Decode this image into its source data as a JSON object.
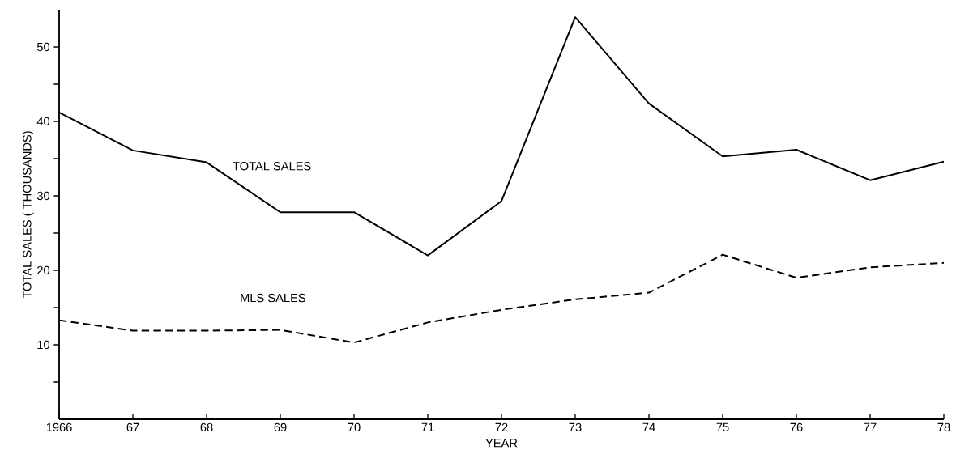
{
  "chart_data": {
    "type": "line",
    "xlabel": "YEAR",
    "ylabel": "TOTAL SALES ( THOUSANDS)",
    "x": [
      1966,
      1967,
      1968,
      1969,
      1970,
      1971,
      1972,
      1973,
      1974,
      1975,
      1976,
      1977,
      1978
    ],
    "series": [
      {
        "name": "TOTAL SALES",
        "color": "#000000",
        "line_style": "solid",
        "values": [
          41.2,
          36.1,
          34.5,
          27.8,
          27.8,
          22.0,
          29.3,
          54.0,
          42.4,
          35.3,
          36.2,
          32.1,
          34.6
        ]
      },
      {
        "name": "MLS SALES",
        "color": "#000000",
        "line_style": "dashed",
        "values": [
          13.3,
          11.9,
          11.9,
          12.0,
          10.3,
          13.0,
          14.7,
          16.1,
          17.0,
          22.1,
          19.0,
          20.4,
          21.0
        ]
      }
    ],
    "xlim": [
      1966,
      1978
    ],
    "ylim": [
      0,
      55
    ],
    "xticks": [
      {
        "value": 1966,
        "label": "1966"
      },
      {
        "value": 1967,
        "label": "67"
      },
      {
        "value": 1968,
        "label": "68"
      },
      {
        "value": 1969,
        "label": "69"
      },
      {
        "value": 1970,
        "label": "70"
      },
      {
        "value": 1971,
        "label": "71"
      },
      {
        "value": 1972,
        "label": "72"
      },
      {
        "value": 1973,
        "label": "73"
      },
      {
        "value": 1974,
        "label": "74"
      },
      {
        "value": 1975,
        "label": "75"
      },
      {
        "value": 1976,
        "label": "76"
      },
      {
        "value": 1977,
        "label": "77"
      },
      {
        "value": 1978,
        "label": "78"
      }
    ],
    "yticks": [
      {
        "value": 5,
        "label": null
      },
      10,
      {
        "value": 15,
        "label": null
      },
      20,
      {
        "value": 25,
        "label": null
      },
      30,
      {
        "value": 35,
        "label": null
      },
      40,
      {
        "value": 45,
        "label": null
      },
      50
    ],
    "grid": false,
    "marker": "none"
  }
}
